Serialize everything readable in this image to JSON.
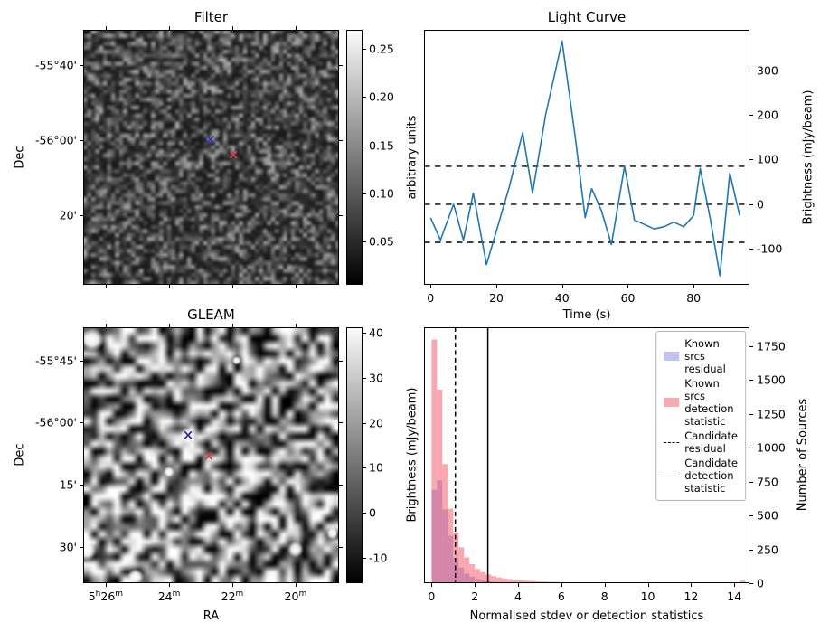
{
  "chart_data": [
    {
      "id": "filter",
      "type": "heatmap",
      "title": "Filter",
      "ylabel": "Dec",
      "ytick_labels": [
        "-55°40'",
        "-56°00'",
        "20'"
      ],
      "ytick_pos": [
        0.138,
        0.433,
        0.727
      ],
      "xtick_pos": [
        0.088,
        0.336,
        0.583,
        0.83
      ],
      "colorbar": {
        "label": "arbitrary units",
        "vmin": 0.005,
        "vmax": 0.27,
        "ticks": [
          {
            "label": "0.05",
            "v": 0.05
          },
          {
            "label": "0.10",
            "v": 0.1
          },
          {
            "label": "0.15",
            "v": 0.15
          },
          {
            "label": "0.20",
            "v": 0.2
          },
          {
            "label": "0.25",
            "v": 0.25
          }
        ]
      },
      "markers": [
        {
          "name": "blue-cross",
          "color": "#3333bb",
          "x": 0.498,
          "y": 0.433
        },
        {
          "name": "red-cross",
          "color": "#cc4444",
          "x": 0.587,
          "y": 0.493
        }
      ]
    },
    {
      "id": "light-curve",
      "type": "line",
      "title": "Light Curve",
      "xlabel": "Time (s)",
      "ylabel": "Brightness (mJy/beam)",
      "xlim": [
        -2,
        97
      ],
      "ylim": [
        -180,
        390
      ],
      "xticks": [
        0,
        20,
        40,
        60,
        80
      ],
      "yticks": [
        -100,
        0,
        100,
        200,
        300
      ],
      "threshold_lines": [
        85,
        0,
        -85
      ],
      "line_color": "#1f77b4",
      "x": [
        0,
        3,
        7,
        10,
        13,
        17,
        20,
        24,
        28,
        31,
        35,
        40,
        44,
        47,
        49,
        52,
        55,
        59,
        62,
        65,
        68,
        71,
        74,
        77,
        80,
        82,
        85,
        88,
        91,
        94
      ],
      "y": [
        -30,
        -80,
        0,
        -80,
        25,
        -135,
        -60,
        40,
        160,
        25,
        200,
        365,
        150,
        -30,
        35,
        -15,
        -90,
        85,
        -35,
        -45,
        -55,
        -50,
        -40,
        -50,
        -25,
        80,
        -30,
        -160,
        70,
        -25
      ]
    },
    {
      "id": "gleam",
      "type": "heatmap",
      "title": "GLEAM",
      "xlabel": "RA",
      "ylabel": "Dec",
      "ytick_labels": [
        "-55°45'",
        "-56°00'",
        "15'",
        "30'"
      ],
      "ytick_pos": [
        0.131,
        0.371,
        0.615,
        0.859
      ],
      "xtick_labels": [
        "5{h}26{m}",
        "24{m}",
        "22{m}",
        "20{m}"
      ],
      "xtick_pos": [
        0.088,
        0.336,
        0.583,
        0.83
      ],
      "colorbar": {
        "label": "Brightness (mJy/beam)",
        "vmin": -15.6,
        "vmax": 41.2,
        "ticks": [
          {
            "label": "-10",
            "v": -10
          },
          {
            "label": "0",
            "v": 0
          },
          {
            "label": "10",
            "v": 10
          },
          {
            "label": "20",
            "v": 20
          },
          {
            "label": "30",
            "v": 30
          },
          {
            "label": "40",
            "v": 40
          }
        ]
      },
      "markers": [
        {
          "name": "blue-cross",
          "color": "#2a2ab0",
          "x": 0.41,
          "y": 0.424
        },
        {
          "name": "red-cross",
          "color": "#cc4444",
          "x": 0.491,
          "y": 0.505
        }
      ],
      "bright_spots": [
        [
          0.41,
          0.424,
          9
        ],
        [
          0.035,
          0.05,
          13
        ],
        [
          0.012,
          0.875,
          11
        ],
        [
          0.205,
          0.975,
          9
        ],
        [
          0.83,
          0.868,
          9
        ],
        [
          0.975,
          0.805,
          7
        ],
        [
          0.6,
          0.13,
          5
        ],
        [
          0.335,
          0.565,
          6
        ]
      ]
    },
    {
      "id": "histogram",
      "type": "histogram",
      "xlabel": "Normalised stdev or detection statistics",
      "ylabel": "Number of Sources",
      "xlim": [
        -0.35,
        14.7
      ],
      "ylim": [
        0,
        1890
      ],
      "xticks": [
        0,
        2,
        4,
        6,
        8,
        10,
        12,
        14
      ],
      "yticks": [
        0,
        250,
        500,
        750,
        1000,
        1250,
        1500,
        1750
      ],
      "bin_width": 0.25,
      "series": [
        {
          "name": "Known srcs residual",
          "color": "rgba(80,80,220,0.35)",
          "values": [
            690,
            760,
            545,
            350,
            185,
            115,
            70,
            48,
            32,
            22,
            15,
            10,
            7,
            5,
            4,
            3,
            2,
            2,
            1,
            1,
            1,
            1,
            0,
            0,
            0,
            0,
            0,
            0,
            0,
            0,
            0,
            0,
            0,
            0,
            0,
            0,
            0,
            0,
            0,
            0,
            0,
            0,
            0,
            0,
            0,
            0,
            0,
            0,
            0,
            0,
            0,
            0,
            0,
            0,
            0,
            0,
            0,
            0,
            0,
            0
          ]
        },
        {
          "name": "Known srcs detection statistic",
          "color": "rgba(240,65,80,0.45)",
          "values": [
            1800,
            1430,
            880,
            550,
            375,
            265,
            190,
            140,
            105,
            82,
            65,
            52,
            42,
            35,
            30,
            26,
            22,
            19,
            16,
            14,
            12,
            10,
            9,
            8,
            7,
            6,
            5,
            5,
            4,
            4,
            3,
            3,
            2,
            2,
            1,
            1,
            1,
            1,
            1,
            1,
            1,
            0,
            0,
            0,
            0,
            0,
            0,
            0,
            0,
            0,
            0,
            0,
            0,
            0,
            0,
            0,
            0,
            18,
            0,
            0
          ]
        }
      ],
      "vlines": [
        {
          "name": "Candidate residual",
          "style": "dashed",
          "x": 1.1
        },
        {
          "name": "Candidate detection statistic",
          "style": "solid",
          "x": 2.6
        }
      ]
    }
  ]
}
